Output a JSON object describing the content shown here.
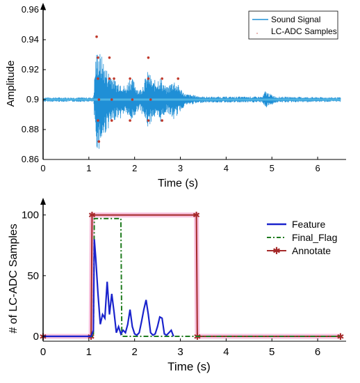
{
  "chart_data": [
    {
      "type": "line",
      "xlabel": "Time (s)",
      "ylabel": "Amplitude",
      "xlim": [
        0,
        6.5
      ],
      "ylim": [
        0.86,
        0.96
      ],
      "xticks": [
        "0",
        "1",
        "2",
        "3",
        "4",
        "5",
        "6"
      ],
      "yticks": [
        "0.86",
        "0.88",
        "0.9",
        "0.92",
        "0.94",
        "0.96"
      ],
      "legend_position": "top-right",
      "series": [
        {
          "name": "Sound Signal",
          "color": "#1f8fd6",
          "envelope": [
            [
              0,
              0.0015
            ],
            [
              1.1,
              0.0015
            ],
            [
              1.15,
              0.03
            ],
            [
              1.2,
              0.035
            ],
            [
              1.3,
              0.028
            ],
            [
              1.4,
              0.02
            ],
            [
              1.5,
              0.018
            ],
            [
              1.6,
              0.012
            ],
            [
              1.7,
              0.013
            ],
            [
              1.8,
              0.008
            ],
            [
              1.9,
              0.016
            ],
            [
              2.0,
              0.012
            ],
            [
              2.1,
              0.006
            ],
            [
              2.2,
              0.012
            ],
            [
              2.3,
              0.02
            ],
            [
              2.4,
              0.012
            ],
            [
              2.55,
              0.016
            ],
            [
              2.7,
              0.008
            ],
            [
              2.85,
              0.014
            ],
            [
              2.95,
              0.01
            ],
            [
              3.1,
              0.004
            ],
            [
              3.5,
              0.002
            ],
            [
              4.8,
              0.002
            ],
            [
              4.85,
              0.006
            ],
            [
              4.95,
              0.004
            ],
            [
              5.1,
              0.002
            ],
            [
              6.5,
              0.0015
            ]
          ]
        },
        {
          "name": "LC-ADC Samples",
          "color": "#c0392b",
          "x": [
            1.17,
            1.2,
            1.2,
            1.2,
            1.22,
            1.22,
            1.45,
            1.45,
            1.5,
            1.5,
            1.55,
            1.9,
            1.9,
            1.95,
            2.3,
            2.3,
            2.3,
            2.35,
            2.6,
            2.6,
            2.95
          ],
          "y": [
            0.942,
            0.928,
            0.914,
            0.886,
            0.872,
            0.9,
            0.928,
            0.914,
            0.886,
            0.9,
            0.914,
            0.914,
            0.886,
            0.9,
            0.928,
            0.914,
            0.886,
            0.9,
            0.914,
            0.886,
            0.914
          ]
        }
      ]
    },
    {
      "type": "line",
      "xlabel": "Time (s)",
      "ylabel": "# of LC-ADC Samples",
      "xlim": [
        0,
        6.5
      ],
      "ylim": [
        0,
        105
      ],
      "xticks": [
        "0",
        "1",
        "2",
        "3",
        "4",
        "5",
        "6"
      ],
      "yticks": [
        "0",
        "50",
        "100"
      ],
      "legend_position": "top-right",
      "series": [
        {
          "name": "Feature",
          "color": "#1a23cc",
          "x": [
            0,
            1.05,
            1.1,
            1.12,
            1.15,
            1.2,
            1.25,
            1.3,
            1.35,
            1.4,
            1.45,
            1.5,
            1.55,
            1.6,
            1.65,
            1.7,
            1.75,
            1.8,
            1.85,
            1.9,
            1.95,
            2.0,
            2.05,
            2.1,
            2.15,
            2.2,
            2.25,
            2.3,
            2.35,
            2.4,
            2.45,
            2.5,
            2.55,
            2.6,
            2.65,
            2.7,
            2.75,
            2.8,
            2.85
          ],
          "y": [
            0,
            0,
            5,
            80,
            65,
            35,
            10,
            18,
            15,
            45,
            18,
            35,
            20,
            3,
            8,
            2,
            5,
            3,
            10,
            22,
            8,
            2,
            1,
            3,
            12,
            22,
            30,
            18,
            3,
            1,
            2,
            8,
            16,
            15,
            2,
            1,
            3,
            5,
            0
          ]
        },
        {
          "name": "Final_Flag",
          "color": "#1e7b1e",
          "x": [
            0,
            1.1,
            1.12,
            1.7,
            1.72,
            6.5
          ],
          "y": [
            0,
            0,
            97,
            97,
            0,
            0
          ]
        },
        {
          "name": "Annotate",
          "color": "#a52a2a",
          "x": [
            0,
            1.05,
            1.07,
            3.35,
            3.37,
            6.5
          ],
          "y": [
            0,
            0,
            100,
            100,
            0,
            0
          ]
        }
      ]
    }
  ]
}
